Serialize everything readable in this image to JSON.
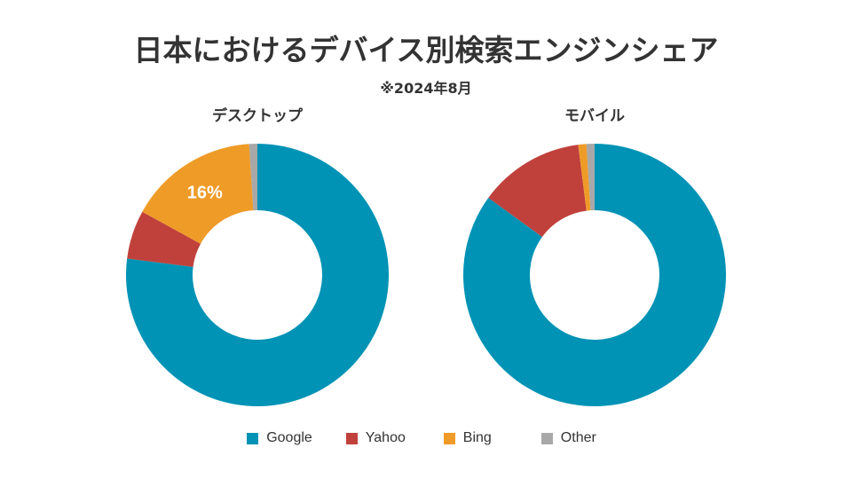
{
  "title": "日本におけるデバイス別検索エンジンシェア",
  "subtitle": "※2024年8月",
  "legend": [
    {
      "name": "Google",
      "color": "#0193b5"
    },
    {
      "name": "Yahoo",
      "color": "#c0413c"
    },
    {
      "name": "Bing",
      "color": "#ef9b28"
    },
    {
      "name": "Other",
      "color": "#a8a8a8"
    }
  ],
  "chart_data": [
    {
      "type": "pie",
      "donut": true,
      "title": "デスクトップ",
      "categories": [
        "Google",
        "Yahoo",
        "Bing",
        "Other"
      ],
      "values": [
        77,
        6,
        16,
        1
      ],
      "data_labels": [
        "",
        "",
        "16%",
        ""
      ]
    },
    {
      "type": "pie",
      "donut": true,
      "title": "モバイル",
      "categories": [
        "Google",
        "Yahoo",
        "Bing",
        "Other"
      ],
      "values": [
        85,
        13,
        1,
        1
      ],
      "data_labels": [
        "",
        "",
        "",
        ""
      ]
    }
  ]
}
